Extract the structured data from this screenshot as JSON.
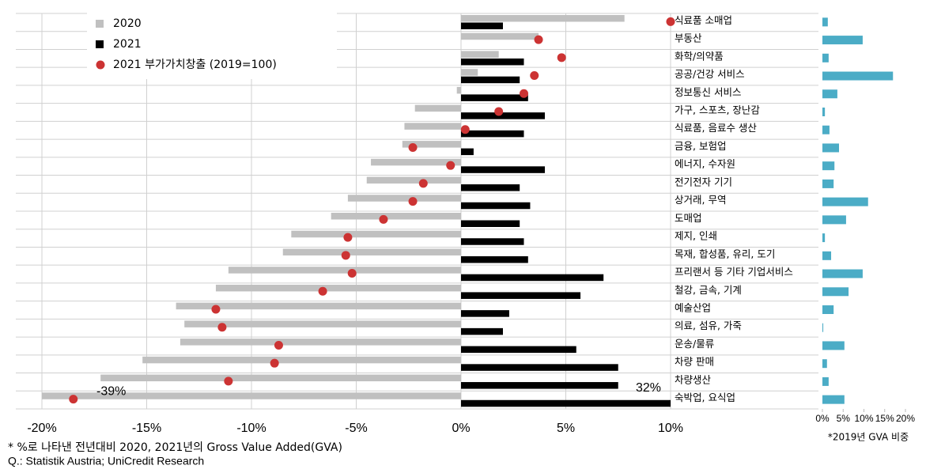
{
  "chart_data": [
    {
      "type": "bar",
      "orientation": "horizontal",
      "categories": [
        "식료품 소매업",
        "부동산",
        "화학/의약품",
        "공공/건강 서비스",
        "정보통신 서비스",
        "가구, 스포츠, 장난감",
        "식료품, 음료수 생산",
        "금융, 보험업",
        "에너지, 수자원",
        "전기전자 기기",
        "상거래, 무역",
        "도매업",
        "제지, 인쇄",
        "목재, 합성품, 유리, 도기",
        "프리랜서 등 기타 기업서비스",
        "철강, 금속, 기계",
        "예술산업",
        "의료, 섬유, 가죽",
        "운송/물류",
        "차량 판매",
        "차량생산",
        "숙박업, 요식업"
      ],
      "series": [
        {
          "name": "2020",
          "color": "#c0c0c0",
          "mark": "bar",
          "values": [
            7.8,
            3.7,
            1.8,
            0.8,
            -0.2,
            -2.2,
            -2.7,
            -2.8,
            -4.3,
            -4.5,
            -5.4,
            -6.2,
            -8.1,
            -8.5,
            -11.1,
            -11.7,
            -13.6,
            -13.2,
            -13.4,
            -15.2,
            -17.2,
            -39
          ],
          "value_labels": [
            null,
            null,
            null,
            null,
            null,
            null,
            null,
            null,
            null,
            null,
            null,
            null,
            null,
            null,
            null,
            null,
            null,
            null,
            null,
            null,
            null,
            "-39%"
          ]
        },
        {
          "name": "2021",
          "color": "#000000",
          "mark": "bar",
          "values": [
            2.0,
            0,
            3.0,
            2.8,
            3.2,
            4.0,
            3.0,
            0.6,
            4.0,
            2.8,
            3.3,
            2.8,
            3.0,
            3.2,
            6.8,
            5.7,
            2.3,
            2.0,
            5.5,
            7.5,
            7.5,
            32
          ],
          "value_labels": [
            null,
            null,
            null,
            null,
            null,
            null,
            null,
            null,
            null,
            null,
            null,
            null,
            null,
            null,
            null,
            null,
            null,
            null,
            null,
            null,
            null,
            "32%"
          ]
        },
        {
          "name": "2021 부가가치창출 (2019=100)",
          "color": "#cc3333",
          "mark": "dot",
          "values": [
            10.0,
            3.7,
            4.8,
            3.5,
            3.0,
            1.8,
            0.2,
            -2.3,
            -0.5,
            -1.8,
            -2.3,
            -3.7,
            -5.4,
            -5.5,
            -5.2,
            -6.6,
            -11.7,
            -11.4,
            -8.7,
            -8.9,
            -11.1,
            -18.5
          ]
        }
      ],
      "xlim": [
        -20,
        10
      ],
      "xticks": [
        {
          "value": -20,
          "label": "-20%"
        },
        {
          "value": -15,
          "label": "-15%"
        },
        {
          "value": -10,
          "label": "-10%"
        },
        {
          "value": -5,
          "label": "-5%"
        },
        {
          "value": 0,
          "label": "0%"
        },
        {
          "value": 5,
          "label": "5%"
        },
        {
          "value": 10,
          "label": "10%"
        }
      ],
      "grid": true,
      "legend": "upper left"
    },
    {
      "type": "bar",
      "orientation": "horizontal",
      "color": "#4bacc6",
      "xlabel": "*2019년 GVA 비중",
      "values": [
        1.3,
        9.7,
        1.5,
        17.0,
        3.6,
        0.6,
        1.7,
        4.0,
        2.9,
        2.7,
        11.0,
        5.7,
        0.6,
        2.1,
        9.7,
        6.3,
        2.7,
        0.2,
        5.3,
        1.1,
        1.5,
        5.3
      ],
      "xlim": [
        0,
        20
      ],
      "xticks": [
        {
          "value": 0,
          "label": "0%"
        },
        {
          "value": 5,
          "label": "5%"
        },
        {
          "value": 10,
          "label": "10%"
        },
        {
          "value": 15,
          "label": "15%"
        },
        {
          "value": 20,
          "label": "20%"
        }
      ]
    },
    {
      "footnotes": [
        "*  %로 나타낸 전년대비 2020, 2021년의 Gross Value Added(GVA)",
        "Q.: Statistik Austria; UniCredit Research"
      ]
    }
  ]
}
